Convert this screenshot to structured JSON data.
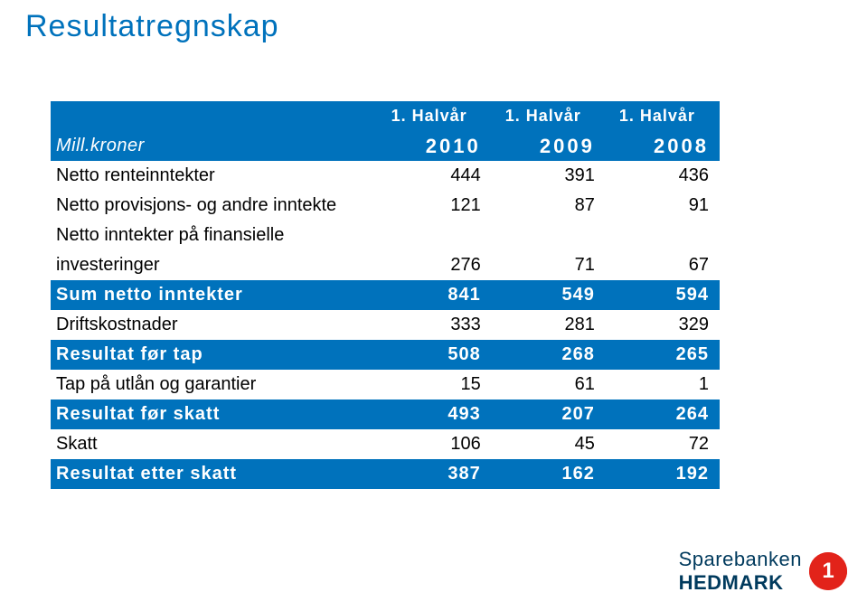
{
  "colors": {
    "accent": "#0072bc",
    "title": "#0072bc",
    "white": "#ffffff",
    "black": "#000000",
    "logo_red": "#e2231a",
    "logo_text": "#003a5d"
  },
  "title": "Resultatregnskap",
  "table": {
    "header1": {
      "label": "",
      "c1": "1. Halvår",
      "c2": "1. Halvår",
      "c3": "1. Halvår"
    },
    "header2": {
      "label": "Mill.kroner",
      "c1": "2010",
      "c2": "2009",
      "c3": "2008"
    },
    "rows": [
      {
        "label": "Netto renteinntekter",
        "c1": "444",
        "c2": "391",
        "c3": "436",
        "bold": false,
        "bg": "white"
      },
      {
        "label": "Netto provisjons- og andre inntekte",
        "c1": "121",
        "c2": "87",
        "c3": "91",
        "bold": false,
        "bg": "white"
      },
      {
        "label": "Netto inntekter på finansielle",
        "c1": "",
        "c2": "",
        "c3": "",
        "bold": false,
        "bg": "white"
      },
      {
        "label": "investeringer",
        "c1": "276",
        "c2": "71",
        "c3": "67",
        "bold": false,
        "bg": "white"
      },
      {
        "label": "Sum netto inntekter",
        "c1": "841",
        "c2": "549",
        "c3": "594",
        "bold": true,
        "bg": "accent"
      },
      {
        "label": "Driftskostnader",
        "c1": "333",
        "c2": "281",
        "c3": "329",
        "bold": false,
        "bg": "white"
      },
      {
        "label": "Resultat før tap",
        "c1": "508",
        "c2": "268",
        "c3": "265",
        "bold": true,
        "bg": "accent"
      },
      {
        "label": "Tap på utlån og garantier",
        "c1": "15",
        "c2": "61",
        "c3": "1",
        "bold": false,
        "bg": "white"
      },
      {
        "label": "Resultat før skatt",
        "c1": "493",
        "c2": "207",
        "c3": "264",
        "bold": true,
        "bg": "accent"
      },
      {
        "label": "Skatt",
        "c1": "106",
        "c2": "45",
        "c3": "72",
        "bold": false,
        "bg": "white"
      },
      {
        "label": "Resultat etter skatt",
        "c1": "387",
        "c2": "162",
        "c3": "192",
        "bold": true,
        "bg": "accent"
      }
    ]
  },
  "logo": {
    "text1": "Sparebanken",
    "text2": "HEDMARK",
    "mark": "1"
  }
}
